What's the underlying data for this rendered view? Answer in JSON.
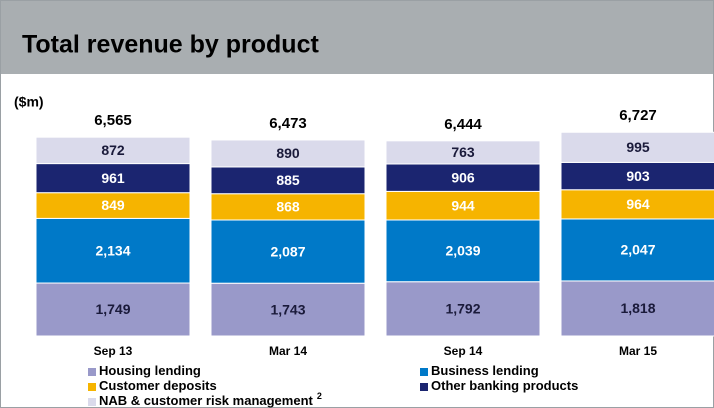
{
  "chart_data": {
    "type": "stacked_bar",
    "title": "Total revenue by product",
    "unit_label": "($m)",
    "categories": [
      "Sep 13",
      "Mar 14",
      "Sep 14",
      "Mar 15"
    ],
    "ylim": [
      0,
      7000
    ],
    "series": [
      {
        "name": "Housing lending",
        "color": "#9999c9",
        "label_color": "#1a1a3a",
        "values": [
          1749,
          1743,
          1792,
          1818
        ],
        "value_labels": [
          "1,749",
          "1,743",
          "1,792",
          "1,818"
        ]
      },
      {
        "name": "Business lending",
        "color": "#0079c8",
        "label_color": "#ffffff",
        "values": [
          2134,
          2087,
          2039,
          2047
        ],
        "value_labels": [
          "2,134",
          "2,087",
          "2,039",
          "2,047"
        ]
      },
      {
        "name": "Customer deposits",
        "color": "#f6b400",
        "label_color": "#ffffff",
        "values": [
          849,
          868,
          944,
          964
        ],
        "value_labels": [
          "849",
          "868",
          "944",
          "964"
        ]
      },
      {
        "name": "Other banking products",
        "color": "#1b2570",
        "label_color": "#ffffff",
        "values": [
          961,
          885,
          906,
          903
        ],
        "value_labels": [
          "961",
          "885",
          "906",
          "903"
        ]
      },
      {
        "name": "NAB & customer risk management",
        "footnote": "2",
        "color": "#dadaeb",
        "label_color": "#1a1a3a",
        "values": [
          872,
          890,
          763,
          995
        ],
        "value_labels": [
          "872",
          "890",
          "763",
          "995"
        ]
      }
    ],
    "totals": {
      "values": [
        6565,
        6473,
        6444,
        6727
      ],
      "value_labels": [
        "6,565",
        "6,473",
        "6,444",
        "6,727"
      ]
    }
  }
}
